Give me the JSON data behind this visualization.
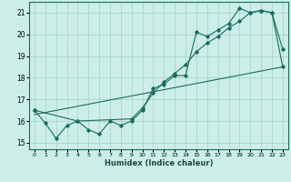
{
  "xlabel": "Humidex (Indice chaleur)",
  "bg_color": "#cceee8",
  "grid_color": "#aad4cc",
  "line_color": "#1a6b5e",
  "xlim": [
    -0.5,
    23.5
  ],
  "ylim": [
    14.7,
    21.5
  ],
  "xticks": [
    0,
    1,
    2,
    3,
    4,
    5,
    6,
    7,
    8,
    9,
    10,
    11,
    12,
    13,
    14,
    15,
    16,
    17,
    18,
    19,
    20,
    21,
    22,
    23
  ],
  "yticks": [
    15,
    16,
    17,
    18,
    19,
    20,
    21
  ],
  "line1_x": [
    0,
    1,
    2,
    3,
    4,
    5,
    6,
    7,
    8,
    9,
    10,
    11,
    12,
    13,
    14,
    15,
    16,
    17,
    18,
    19,
    20,
    21,
    22,
    23
  ],
  "line1_y": [
    16.5,
    15.9,
    15.2,
    15.8,
    16.0,
    15.6,
    15.4,
    16.0,
    15.8,
    16.0,
    16.5,
    17.5,
    17.7,
    18.1,
    18.1,
    20.1,
    19.9,
    20.2,
    20.5,
    21.2,
    21.0,
    21.1,
    21.0,
    19.3
  ],
  "line2_x": [
    0,
    4,
    9,
    10,
    11,
    12,
    13,
    14,
    15,
    16,
    17,
    18,
    19,
    20,
    21,
    22,
    23
  ],
  "line2_y": [
    16.5,
    16.0,
    16.1,
    16.6,
    17.3,
    17.8,
    18.2,
    18.6,
    19.2,
    19.6,
    19.9,
    20.3,
    20.6,
    21.0,
    21.1,
    21.0,
    18.5
  ],
  "line3_x": [
    0,
    23
  ],
  "line3_y": [
    16.3,
    18.5
  ]
}
